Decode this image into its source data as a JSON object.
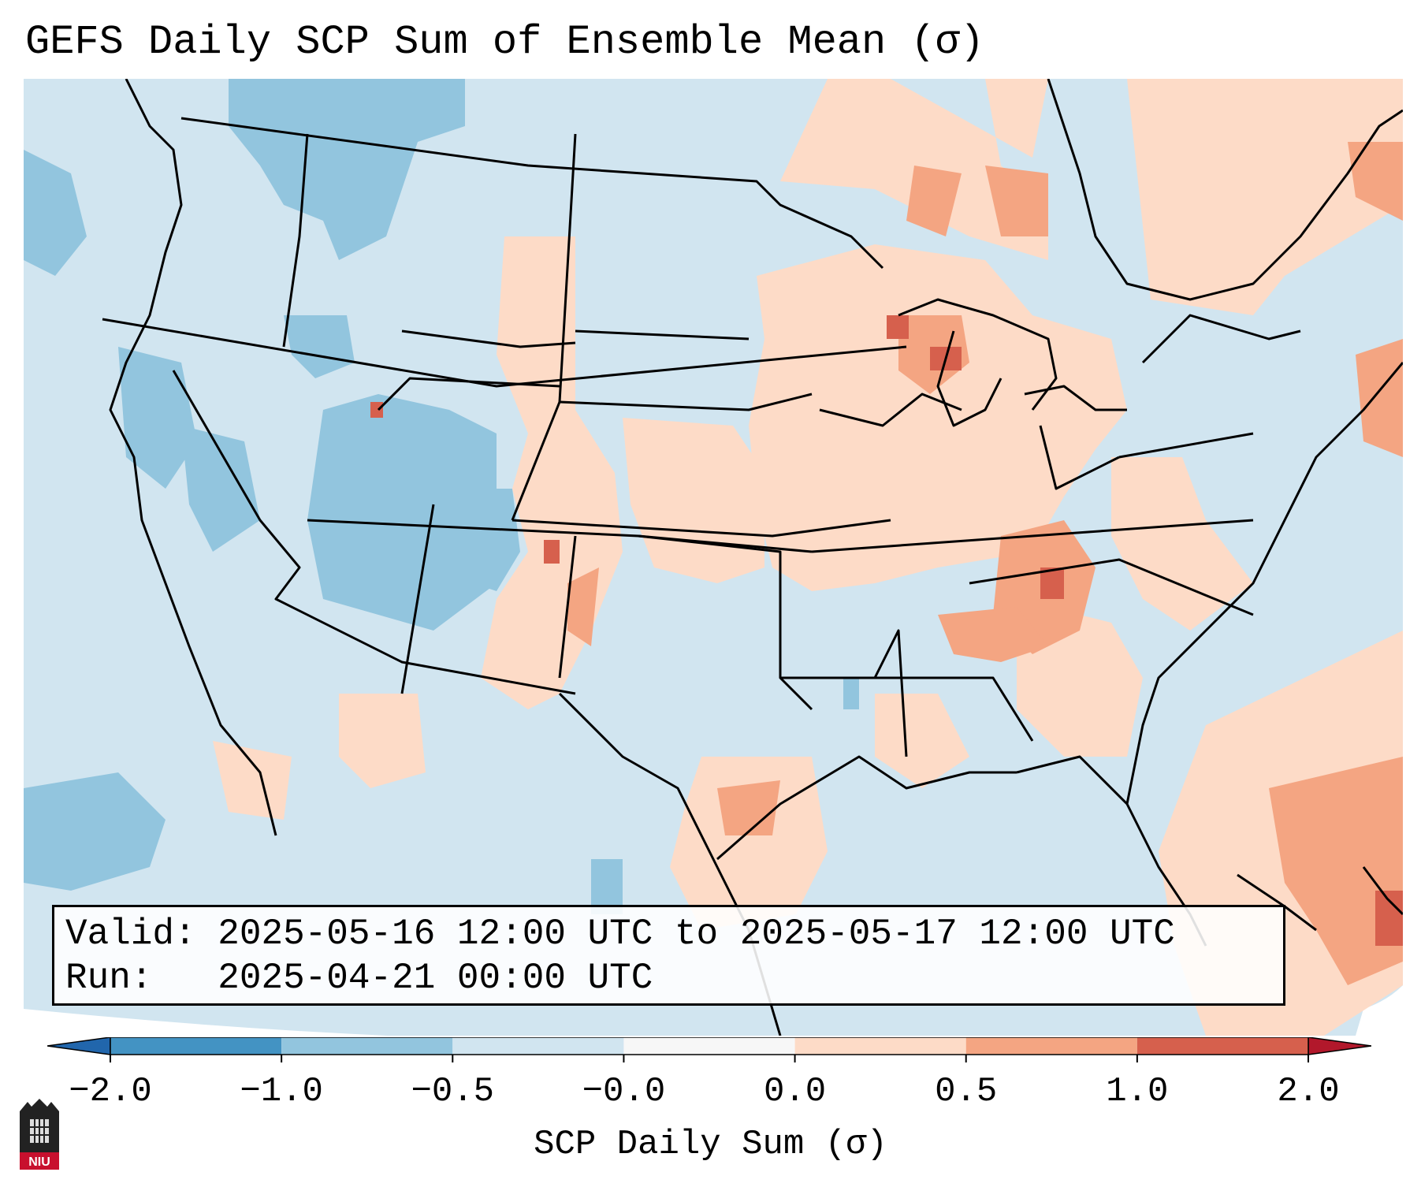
{
  "title": "GEFS Daily SCP Sum of Ensemble Mean (σ)",
  "info": {
    "valid_label": "Valid:",
    "valid_value": "2025-05-16 12:00 UTC to 2025-05-17 12:00 UTC",
    "run_label": "Run:",
    "run_value": "2025-04-21 00:00 UTC"
  },
  "colorbar": {
    "label": "SCP Daily Sum (σ)",
    "ticks": [
      "−2.0",
      "−1.0",
      "−0.5",
      "−0.0",
      "0.0",
      "0.5",
      "1.0",
      "2.0"
    ],
    "bins": [
      {
        "from": -2.0,
        "to": -1.0,
        "color": "#4393c3"
      },
      {
        "from": -1.0,
        "to": -0.5,
        "color": "#92c5de"
      },
      {
        "from": -0.5,
        "to": -0.0,
        "color": "#d1e5f0"
      },
      {
        "from": -0.0,
        "to": 0.0,
        "color": "#f7f7f7"
      },
      {
        "from": 0.0,
        "to": 0.5,
        "color": "#fddbc7"
      },
      {
        "from": 0.5,
        "to": 1.0,
        "color": "#f4a582"
      },
      {
        "from": 1.0,
        "to": 2.0,
        "color": "#d6604d"
      }
    ],
    "under_color": "#2166ac",
    "over_color": "#b2182b"
  },
  "logo_text": "NIU"
}
